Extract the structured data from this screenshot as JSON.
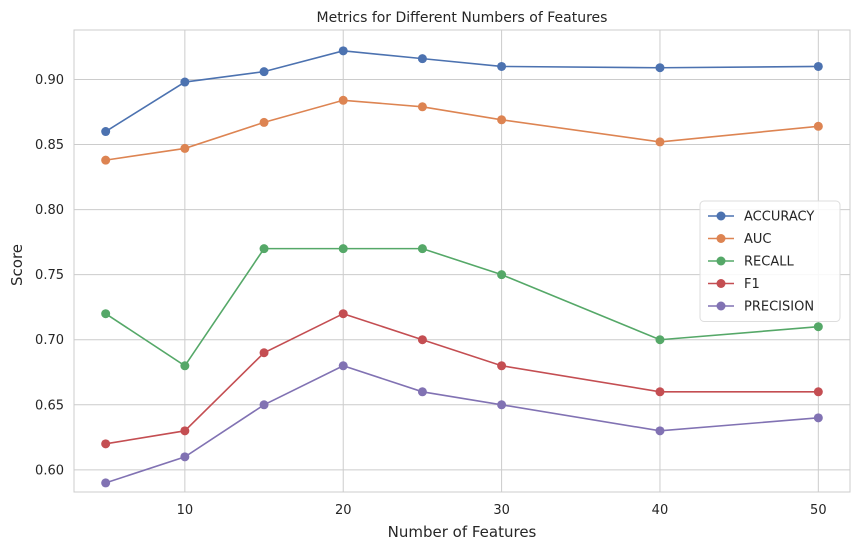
{
  "chart_data": {
    "type": "line",
    "title": "Metrics for Different Numbers of Features",
    "xlabel": "Number of Features",
    "ylabel": "Score",
    "x": [
      5,
      10,
      15,
      20,
      25,
      30,
      40,
      50
    ],
    "xticks": [
      10,
      20,
      30,
      40,
      50
    ],
    "yticks": [
      "0.60",
      "0.65",
      "0.70",
      "0.75",
      "0.80",
      "0.85",
      "0.90"
    ],
    "xlim": [
      3,
      52
    ],
    "ylim": [
      0.583,
      0.938
    ],
    "grid": true,
    "legend_position": "right",
    "series": [
      {
        "name": "ACCURACY",
        "color": "#4c72b0",
        "values": [
          0.86,
          0.898,
          0.906,
          0.922,
          0.916,
          0.91,
          0.909,
          0.91
        ]
      },
      {
        "name": "AUC",
        "color": "#dd8452",
        "values": [
          0.838,
          0.847,
          0.867,
          0.884,
          0.879,
          0.869,
          0.852,
          0.864
        ]
      },
      {
        "name": "RECALL",
        "color": "#55a868",
        "values": [
          0.72,
          0.68,
          0.77,
          0.77,
          0.77,
          0.75,
          0.7,
          0.71
        ]
      },
      {
        "name": "F1",
        "color": "#c44e52",
        "values": [
          0.62,
          0.63,
          0.69,
          0.72,
          0.7,
          0.68,
          0.66,
          0.66
        ]
      },
      {
        "name": "PRECISION",
        "color": "#8172b3",
        "values": [
          0.59,
          0.61,
          0.65,
          0.68,
          0.66,
          0.65,
          0.63,
          0.64
        ]
      }
    ]
  }
}
